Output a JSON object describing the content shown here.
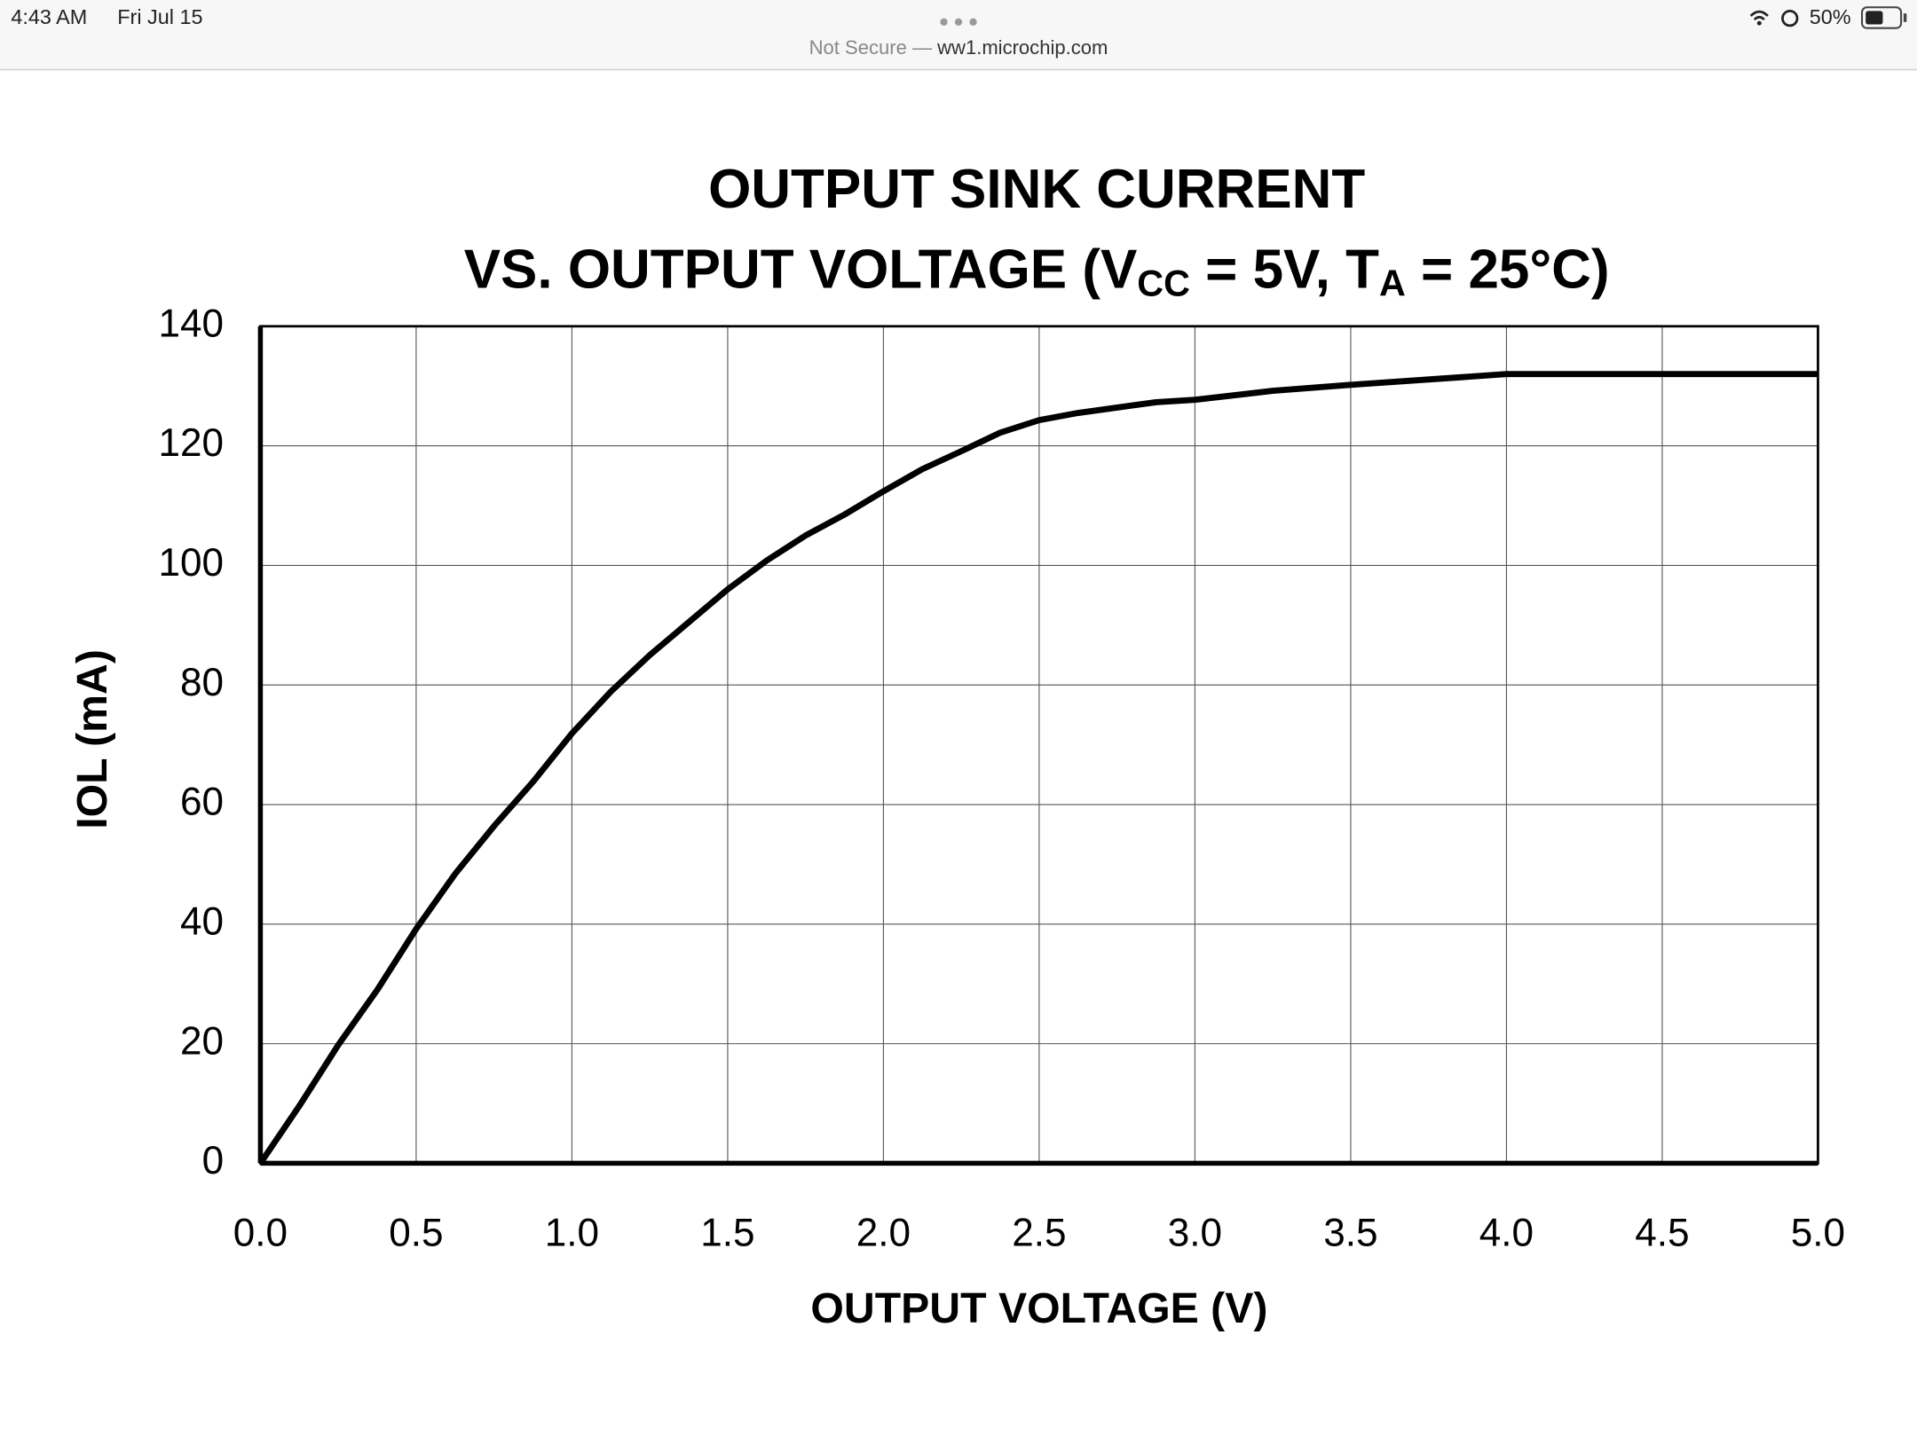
{
  "status_bar": {
    "time": "4:43 AM",
    "date": "Fri Jul 15",
    "battery": "50%"
  },
  "address_bar": {
    "security": "Not Secure —",
    "domain": "ww1.microchip.com"
  },
  "chart_data": {
    "type": "line",
    "title": "OUTPUT SINK CURRENT",
    "subtitle_parts": [
      "VS. OUTPUT VOLTAGE (V",
      "CC",
      " = 5V, T",
      "A",
      " = 25°C)"
    ],
    "x_label": "OUTPUT VOLTAGE (V)",
    "y_label": "IOL (mA)",
    "x": [
      0,
      0.125,
      0.25,
      0.375,
      0.5,
      0.625,
      0.75,
      0.875,
      1.0,
      1.125,
      1.25,
      1.5,
      1.625,
      1.75,
      1.875,
      2.0,
      2.125,
      2.25,
      2.375,
      2.5,
      2.625,
      2.875,
      3.0,
      3.25,
      3.5,
      4.0,
      5.0
    ],
    "values": [
      0,
      9.6,
      19.8,
      29,
      39.2,
      48.4,
      56.4,
      63.8,
      71.9,
      78.9,
      85,
      96,
      100.8,
      105,
      108.5,
      112.4,
      116.1,
      119.1,
      122.2,
      124.3,
      125.5,
      127.3,
      127.7,
      129.2,
      130.2,
      132,
      132
    ],
    "color": "#000000",
    "xlim": [
      0,
      5
    ],
    "ylim": [
      0,
      140
    ],
    "xticks": [
      {
        "value": 0,
        "label": "0.0"
      },
      0.5,
      {
        "value": 1,
        "label": "1.0"
      },
      1.5,
      {
        "value": 2,
        "label": "2.0"
      },
      2.5,
      {
        "value": 3,
        "label": "3.0"
      },
      3.5,
      {
        "value": 4,
        "label": "4.0"
      },
      4.5,
      {
        "value": 5,
        "label": "5.0"
      }
    ],
    "yticks": [
      0,
      20,
      40,
      60,
      80,
      100,
      120,
      140
    ],
    "grid": true
  }
}
